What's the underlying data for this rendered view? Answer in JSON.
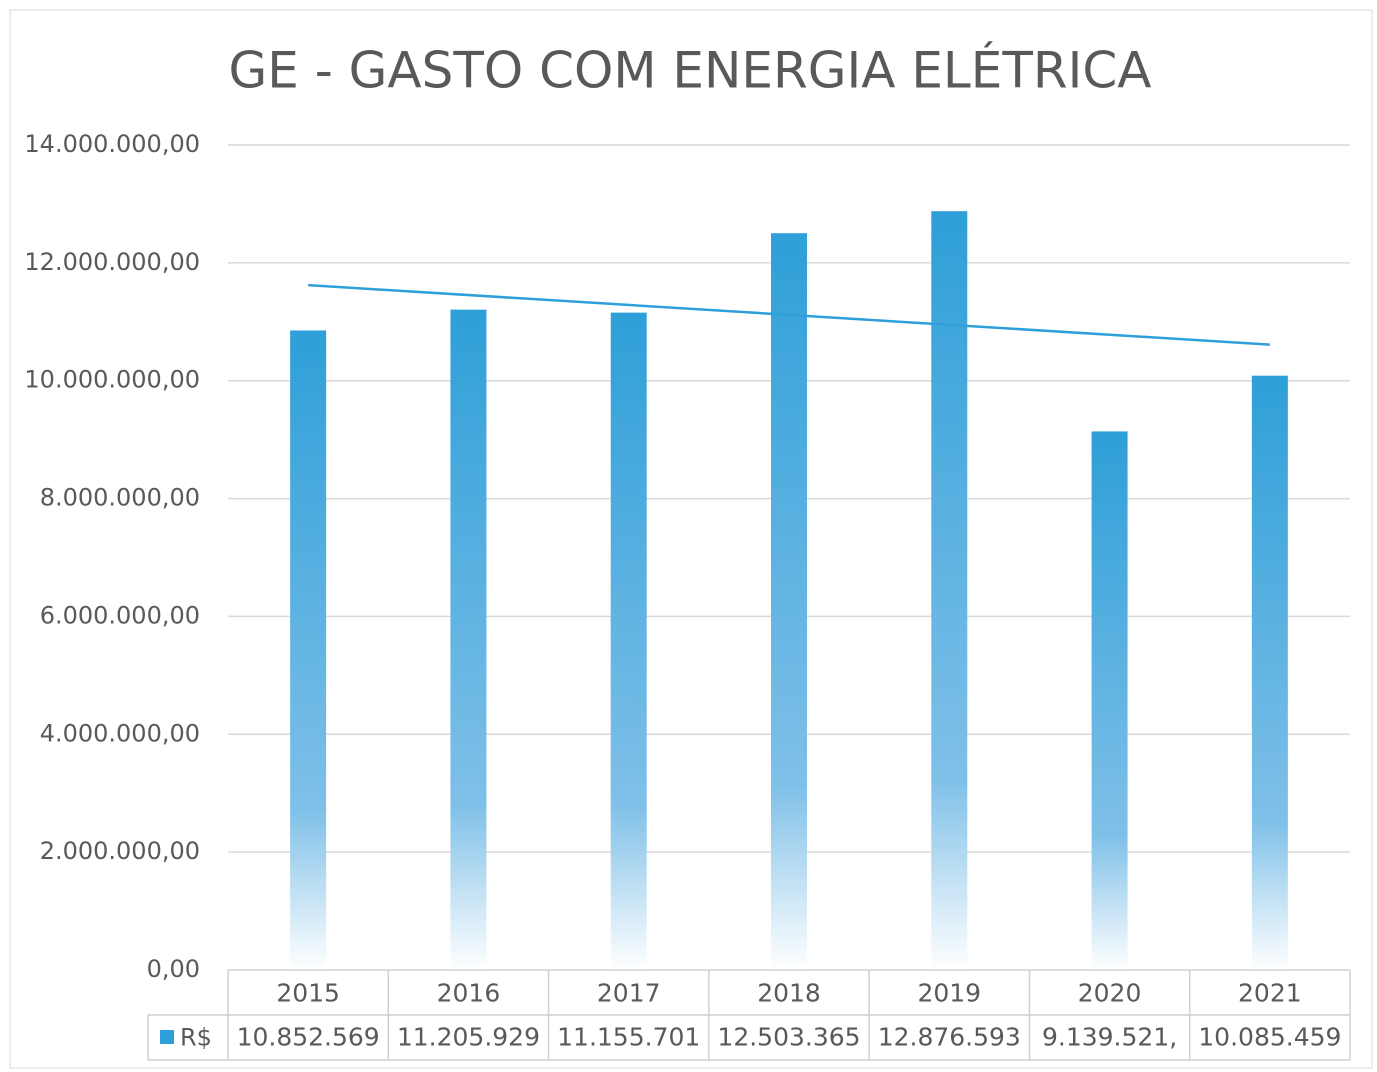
{
  "chart_data": {
    "type": "bar",
    "title": "GE - GASTO COM ENERGIA ELÉTRICA",
    "categories": [
      "2015",
      "2016",
      "2017",
      "2018",
      "2019",
      "2020",
      "2021"
    ],
    "series": [
      {
        "name": "R$",
        "color": "#2e9fd8",
        "values": [
          10852569,
          11205929,
          11155701,
          12503365,
          12876593,
          9139521,
          10085459
        ],
        "value_labels": [
          "10.852.569",
          "11.205.929",
          "11.155.701",
          "12.503.365",
          "12.876.593",
          "9.139.521,",
          "10.085.459"
        ]
      }
    ],
    "ylim": [
      0,
      14000000
    ],
    "yticks": [
      {
        "value": 0,
        "label": "0,00"
      },
      {
        "value": 2000000,
        "label": "2.000.000,00"
      },
      {
        "value": 4000000,
        "label": "4.000.000,00"
      },
      {
        "value": 6000000,
        "label": "6.000.000,00"
      },
      {
        "value": 8000000,
        "label": "8.000.000,00"
      },
      {
        "value": 10000000,
        "label": "10.000.000,00"
      },
      {
        "value": 12000000,
        "label": "12.000.000,00"
      },
      {
        "value": 14000000,
        "label": "14.000.000,00"
      }
    ],
    "grid": true,
    "trendline": "linear",
    "data_table": true
  }
}
